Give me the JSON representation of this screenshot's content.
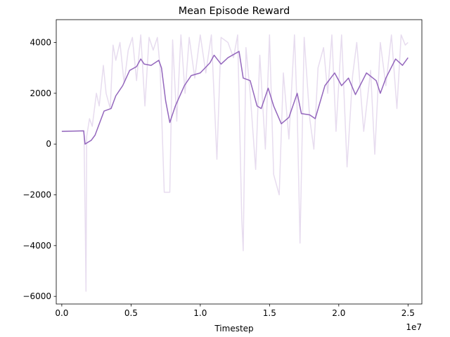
{
  "chart_data": {
    "type": "line",
    "title": "Mean Episode Reward",
    "xlabel": "Timestep",
    "x_offset_label": "1e7",
    "xlim": [
      -400000,
      26000000
    ],
    "ylim": [
      -6300,
      4900
    ],
    "xticks": [
      {
        "value": 0,
        "label": "0.0"
      },
      {
        "value": 5000000,
        "label": "0.5"
      },
      {
        "value": 10000000,
        "label": "1.0"
      },
      {
        "value": 15000000,
        "label": "1.5"
      },
      {
        "value": 20000000,
        "label": "2.0"
      },
      {
        "value": 25000000,
        "label": "2.5"
      }
    ],
    "yticks": [
      {
        "value": -6000,
        "label": "−6000"
      },
      {
        "value": -4000,
        "label": "−4000"
      },
      {
        "value": -2000,
        "label": "−2000"
      },
      0,
      2000,
      4000
    ],
    "series": [
      {
        "color": "#e7dcef",
        "x": [
          0,
          1600000,
          1700000,
          1750000,
          1800000,
          2000000,
          2200000,
          2500000,
          2700000,
          3000000,
          3200000,
          3500000,
          3700000,
          3900000,
          4200000,
          4500000,
          4800000,
          5100000,
          5400000,
          5700000,
          6000000,
          6300000,
          6600000,
          6900000,
          7100000,
          7400000,
          7800000,
          8000000,
          8300000,
          8600000,
          8900000,
          9200000,
          9600000,
          10000000,
          10400000,
          10800000,
          11200000,
          11500000,
          12000000,
          12400000,
          12700000,
          13000000,
          13100000,
          13300000,
          13600000,
          14000000,
          14300000,
          14700000,
          15000000,
          15300000,
          15700000,
          16000000,
          16400000,
          16800000,
          17000000,
          17200000,
          17500000,
          17900000,
          18200000,
          18500000,
          18900000,
          19200000,
          19500000,
          19800000,
          20200000,
          20600000,
          21000000,
          21300000,
          21800000,
          22300000,
          22600000,
          23000000,
          23400000,
          23800000,
          24200000,
          24500000,
          24800000,
          25000000
        ],
        "values": [
          500,
          520,
          -3500,
          -5800,
          300,
          1000,
          700,
          2000,
          1500,
          3100,
          2000,
          1400,
          3900,
          3300,
          4000,
          2400,
          3700,
          4200,
          2500,
          4300,
          1500,
          4200,
          3700,
          4200,
          3000,
          -1900,
          -1900,
          4100,
          900,
          4300,
          2000,
          4200,
          2600,
          4300,
          2800,
          4300,
          -600,
          4200,
          4000,
          3400,
          4300,
          -3000,
          -4200,
          3800,
          2000,
          -1000,
          3500,
          -200,
          4300,
          -1200,
          -2000,
          2800,
          200,
          4300,
          1300,
          -3900,
          4200,
          1000,
          -200,
          3000,
          3800,
          2000,
          4300,
          500,
          4300,
          -900,
          2700,
          4000,
          500,
          2900,
          -400,
          4000,
          2300,
          4300,
          1400,
          4300,
          3900,
          4000
        ]
      },
      {
        "color": "#9467bd",
        "x": [
          0,
          1580000,
          1680000,
          2130000,
          2400000,
          2640000,
          3050000,
          3560000,
          3900000,
          4400000,
          4900000,
          5400000,
          5700000,
          5950000,
          6450000,
          7000000,
          7200000,
          7500000,
          7800000,
          8200000,
          8850000,
          9350000,
          10000000,
          10700000,
          11000000,
          11500000,
          12000000,
          12800000,
          13100000,
          13600000,
          14100000,
          14400000,
          14900000,
          15300000,
          15850000,
          16400000,
          17000000,
          17300000,
          17900000,
          18300000,
          19000000,
          19700000,
          20200000,
          20700000,
          21200000,
          22000000,
          22700000,
          23000000,
          23400000,
          24100000,
          24600000,
          25000000
        ],
        "values": [
          500,
          520,
          0,
          150,
          350,
          700,
          1300,
          1400,
          1900,
          2300,
          2900,
          3050,
          3350,
          3150,
          3100,
          3300,
          3000,
          1700,
          850,
          1500,
          2300,
          2700,
          2800,
          3200,
          3500,
          3150,
          3400,
          3650,
          2600,
          2500,
          1500,
          1400,
          2200,
          1500,
          800,
          1050,
          2000,
          1200,
          1150,
          1000,
          2300,
          2800,
          2300,
          2600,
          1950,
          2800,
          2500,
          2000,
          2600,
          3350,
          3100,
          3400
        ]
      }
    ]
  }
}
